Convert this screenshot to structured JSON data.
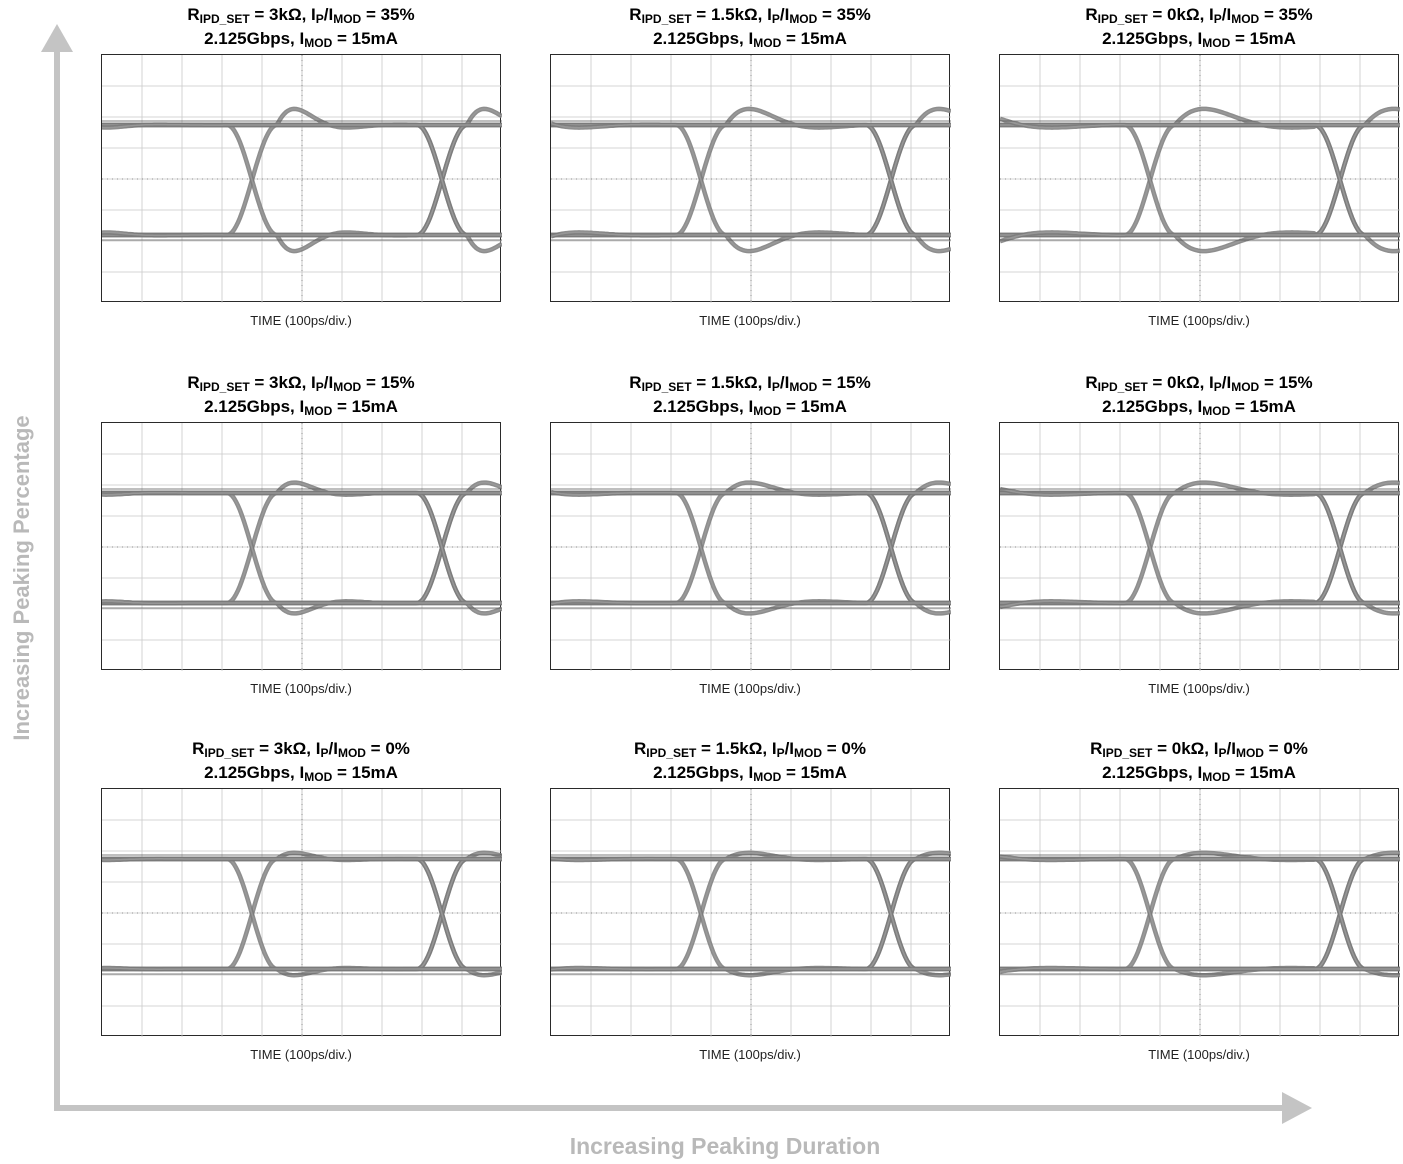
{
  "chart_data": {
    "type": "eye-diagram-grid",
    "rows": 3,
    "cols": 3,
    "x_axis_label": "Increasing Peaking Duration",
    "y_axis_label": "Increasing Peaking Percentage",
    "panels": [
      {
        "title_line1": {
          "R": "R",
          "r_sub": "IPD_SET",
          "r_val": " = 3kΩ, I",
          "p_sub": "P",
          "slash": "/I",
          "mod_sub": "MOD",
          "pct": " = 35%"
        },
        "title_line2": {
          "rate": "2.125Gbps, I",
          "mod_sub": "MOD",
          "imod": " = 15mA"
        },
        "xlabel": "TIME (100ps/div.)",
        "peaking_pct": 35,
        "resistance_kohm": 3
      },
      {
        "title_line1": {
          "R": "R",
          "r_sub": "IPD_SET",
          "r_val": " = 1.5kΩ, I",
          "p_sub": "P",
          "slash": "/I",
          "mod_sub": "MOD",
          "pct": " = 35%"
        },
        "title_line2": {
          "rate": "2.125Gbps, I",
          "mod_sub": "MOD",
          "imod": " = 15mA"
        },
        "xlabel": "TIME (100ps/div.)",
        "peaking_pct": 35,
        "resistance_kohm": 1.5
      },
      {
        "title_line1": {
          "R": "R",
          "r_sub": "IPD_SET",
          "r_val": " = 0kΩ, I",
          "p_sub": "P",
          "slash": "/I",
          "mod_sub": "MOD",
          "pct": " = 35%"
        },
        "title_line2": {
          "rate": "2.125Gbps, I",
          "mod_sub": "MOD",
          "imod": " = 15mA"
        },
        "xlabel": "TIME (100ps/div.)",
        "peaking_pct": 35,
        "resistance_kohm": 0
      },
      {
        "title_line1": {
          "R": "R",
          "r_sub": "IPD_SET",
          "r_val": " = 3kΩ, I",
          "p_sub": "P",
          "slash": "/I",
          "mod_sub": "MOD",
          "pct": " = 15%"
        },
        "title_line2": {
          "rate": "2.125Gbps, I",
          "mod_sub": "MOD",
          "imod": " = 15mA"
        },
        "xlabel": "TIME (100ps/div.)",
        "peaking_pct": 15,
        "resistance_kohm": 3
      },
      {
        "title_line1": {
          "R": "R",
          "r_sub": "IPD_SET",
          "r_val": " = 1.5kΩ, I",
          "p_sub": "P",
          "slash": "/I",
          "mod_sub": "MOD",
          "pct": " = 15%"
        },
        "title_line2": {
          "rate": "2.125Gbps, I",
          "mod_sub": "MOD",
          "imod": " = 15mA"
        },
        "xlabel": "TIME (100ps/div.)",
        "peaking_pct": 15,
        "resistance_kohm": 1.5
      },
      {
        "title_line1": {
          "R": "R",
          "r_sub": "IPD_SET",
          "r_val": " = 0kΩ, I",
          "p_sub": "P",
          "slash": "/I",
          "mod_sub": "MOD",
          "pct": " = 15%"
        },
        "title_line2": {
          "rate": "2.125Gbps, I",
          "mod_sub": "MOD",
          "imod": " = 15mA"
        },
        "xlabel": "TIME (100ps/div.)",
        "peaking_pct": 15,
        "resistance_kohm": 0
      },
      {
        "title_line1": {
          "R": "R",
          "r_sub": "IPD_SET",
          "r_val": " = 3kΩ, I",
          "p_sub": "P",
          "slash": "/I",
          "mod_sub": "MOD",
          "pct": " = 0%"
        },
        "title_line2": {
          "rate": "2.125Gbps, I",
          "mod_sub": "MOD",
          "imod": " = 15mA"
        },
        "xlabel": "TIME (100ps/div.)",
        "peaking_pct": 0,
        "resistance_kohm": 3
      },
      {
        "title_line1": {
          "R": "R",
          "r_sub": "IPD_SET",
          "r_val": " = 1.5kΩ, I",
          "p_sub": "P",
          "slash": "/I",
          "mod_sub": "MOD",
          "pct": " = 0%"
        },
        "title_line2": {
          "rate": "2.125Gbps, I",
          "mod_sub": "MOD",
          "imod": " = 15mA"
        },
        "xlabel": "TIME (100ps/div.)",
        "peaking_pct": 0,
        "resistance_kohm": 1.5
      },
      {
        "title_line1": {
          "R": "R",
          "r_sub": "IPD_SET",
          "r_val": " = 0kΩ, I",
          "p_sub": "P",
          "slash": "/I",
          "mod_sub": "MOD",
          "pct": " = 0%"
        },
        "title_line2": {
          "rate": "2.125Gbps, I",
          "mod_sub": "MOD",
          "imod": " = 15mA"
        },
        "xlabel": "TIME (100ps/div.)",
        "peaking_pct": 0,
        "resistance_kohm": 0
      }
    ],
    "grid": true,
    "colors": {
      "trace": "#7a7a7a",
      "grid": "#c8c8c8",
      "axis_arrow": "#c4c4c4",
      "axis_label": "#b9b9b9"
    }
  }
}
